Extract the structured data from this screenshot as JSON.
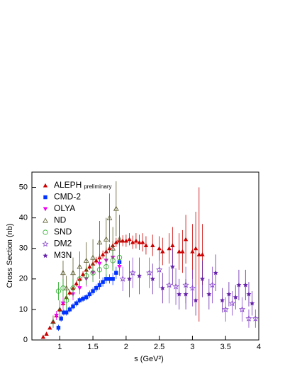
{
  "chart_data": {
    "type": "scatter",
    "x_label": "s  (GeV²)",
    "y_label": "Cross Section  (nb)",
    "xlim": [
      0.58,
      4.0
    ],
    "ylim": [
      0,
      55
    ],
    "xticks": [
      1,
      1.5,
      2,
      2.5,
      3,
      3.5,
      4
    ],
    "yticks": [
      0,
      10,
      20,
      30,
      40,
      50
    ],
    "legend": "top-left",
    "series": [
      {
        "name": "ALEPH",
        "note": "preliminary",
        "color": "#cc0000",
        "marker": "triangle-up",
        "x": [
          0.75,
          0.8,
          0.85,
          0.9,
          0.95,
          1.0,
          1.05,
          1.1,
          1.15,
          1.2,
          1.25,
          1.3,
          1.35,
          1.4,
          1.45,
          1.5,
          1.55,
          1.6,
          1.65,
          1.7,
          1.75,
          1.8,
          1.85,
          1.9,
          1.95,
          2.0,
          2.05,
          2.1,
          2.15,
          2.2,
          2.25,
          2.3,
          2.4,
          2.5,
          2.55,
          2.65,
          2.7,
          2.8,
          2.85,
          2.9,
          3.0,
          3.05,
          3.1,
          3.15
        ],
        "values": [
          1,
          2,
          4,
          6,
          8,
          10,
          12,
          14,
          15.5,
          17,
          18.5,
          20,
          21.5,
          23,
          24,
          25,
          26,
          27,
          28,
          29,
          30,
          31,
          32,
          32.5,
          32.5,
          32.5,
          33,
          32,
          32.5,
          32,
          32,
          31,
          31,
          30,
          29,
          30,
          31,
          29,
          29,
          33,
          29,
          30,
          28,
          28
        ],
        "errors": [
          0.5,
          0.5,
          0.6,
          0.7,
          0.8,
          0.8,
          0.9,
          1,
          1,
          1,
          1,
          1,
          1,
          1,
          1,
          1.2,
          1.2,
          1.2,
          1.3,
          1.3,
          1.4,
          1.5,
          1.5,
          1.6,
          1.8,
          2,
          2,
          2.2,
          2.5,
          2.5,
          3,
          3,
          3.5,
          4,
          4.5,
          5,
          6,
          6,
          7,
          8,
          9,
          12,
          22,
          10
        ]
      },
      {
        "name": "CMD-2",
        "color": "#0033ff",
        "marker": "square",
        "x": [
          0.98,
          1.02,
          1.06,
          1.1,
          1.15,
          1.2,
          1.25,
          1.3,
          1.35,
          1.4,
          1.45,
          1.5,
          1.55,
          1.6,
          1.65,
          1.7,
          1.75,
          1.8,
          1.85,
          1.9
        ],
        "values": [
          4,
          7,
          9,
          9,
          10,
          11,
          12,
          13,
          13.5,
          14,
          15,
          16,
          17,
          18,
          19,
          20,
          20,
          20,
          22,
          25.5
        ],
        "errors": [
          1,
          1,
          1,
          1,
          1,
          1,
          1,
          1,
          1,
          1,
          1.2,
          1.2,
          1.2,
          1.5,
          1.5,
          1.5,
          1.5,
          2,
          2,
          2.5
        ]
      },
      {
        "name": "OLYA",
        "color": "#ee00ee",
        "marker": "triangle-down",
        "x": [
          0.95,
          1.05,
          1.2,
          1.3,
          1.4,
          1.5,
          1.6,
          1.7,
          1.8,
          1.9
        ],
        "values": [
          8,
          12,
          15,
          17,
          20,
          22,
          25,
          26,
          27,
          24
        ],
        "errors": [
          1.5,
          2,
          2,
          2,
          2.5,
          2.5,
          3,
          3,
          3,
          3
        ]
      },
      {
        "name": "ND",
        "color": "#5a5a2a",
        "marker": "open-triangle",
        "x": [
          0.9,
          1.0,
          1.05,
          1.1,
          1.2,
          1.3,
          1.4,
          1.5,
          1.6,
          1.7,
          1.75,
          1.8,
          1.85,
          1.9
        ],
        "values": [
          6,
          10,
          22,
          17,
          22,
          24,
          26,
          27,
          32,
          33,
          40,
          30,
          43,
          33
        ],
        "errors": [
          2,
          3,
          4,
          4,
          5,
          5,
          6,
          6,
          7,
          7,
          8,
          7,
          9,
          8
        ]
      },
      {
        "name": "SND",
        "color": "#22aa22",
        "marker": "open-circle",
        "x": [
          0.98,
          1.05,
          1.1,
          1.2,
          1.3,
          1.4,
          1.5,
          1.6,
          1.7,
          1.8,
          1.9
        ],
        "values": [
          16,
          17,
          13,
          17,
          20,
          21,
          22,
          23,
          24,
          26,
          27
        ],
        "errors": [
          3,
          3,
          3,
          3,
          3,
          3,
          3,
          3,
          3.5,
          3.5,
          4
        ]
      },
      {
        "name": "DM2",
        "color": "#8844cc",
        "marker": "open-star",
        "x": [
          1.95,
          2.1,
          2.35,
          2.5,
          2.65,
          2.75,
          2.9,
          3.0,
          3.3,
          3.5,
          3.6,
          3.75,
          3.85,
          3.95
        ],
        "values": [
          20,
          22,
          22,
          23,
          18,
          17.5,
          18,
          17,
          18,
          10,
          12,
          10,
          7,
          7
        ],
        "errors": [
          4,
          5,
          5,
          6,
          6,
          6,
          6,
          6,
          6,
          4,
          4,
          4,
          3,
          3
        ]
      },
      {
        "name": "M3N",
        "color": "#6622aa",
        "marker": "star",
        "x": [
          2.05,
          2.2,
          2.4,
          2.55,
          2.7,
          2.8,
          2.9,
          3.05,
          3.15,
          3.25,
          3.35,
          3.45,
          3.55,
          3.65,
          3.7,
          3.8,
          3.85,
          3.9
        ],
        "values": [
          20,
          21,
          20,
          17,
          24,
          15,
          15,
          13,
          20,
          15,
          22,
          13,
          15,
          14,
          18,
          18,
          15,
          12
        ],
        "errors": [
          6,
          6,
          5,
          5,
          6,
          5,
          5,
          5,
          6,
          5,
          6,
          4,
          4,
          4,
          5,
          5,
          4,
          4
        ]
      }
    ]
  }
}
